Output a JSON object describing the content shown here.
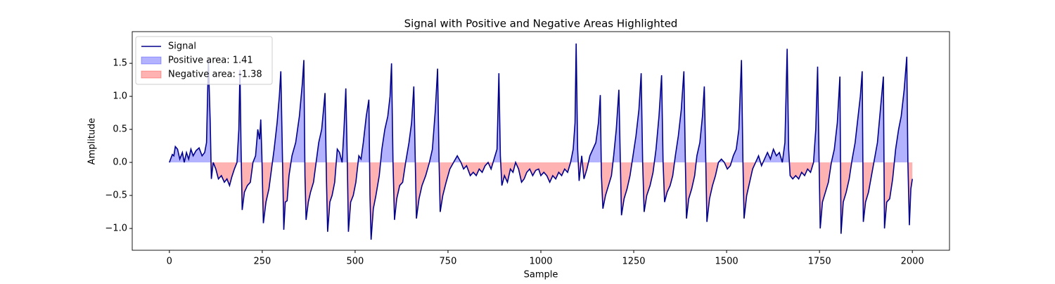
{
  "chart_data": {
    "type": "line",
    "title": "Signal with Positive and Negative Areas Highlighted",
    "xlabel": "Sample",
    "ylabel": "Amplitude",
    "x": [
      0,
      8,
      12,
      16,
      22,
      28,
      35,
      40,
      46,
      52,
      58,
      64,
      72,
      80,
      88,
      95,
      100,
      105,
      110,
      113,
      118,
      125,
      132,
      140,
      148,
      155,
      162,
      168,
      175,
      182,
      187,
      190,
      193,
      196,
      202,
      210,
      218,
      225,
      232,
      238,
      243,
      246,
      249,
      253,
      260,
      268,
      275,
      282,
      290,
      296,
      300,
      304,
      308,
      312,
      317,
      322,
      330,
      340,
      350,
      358,
      362,
      365,
      368,
      374,
      380,
      388,
      395,
      402,
      410,
      415,
      419,
      423,
      426,
      432,
      438,
      445,
      452,
      458,
      465,
      470,
      475,
      479,
      482,
      488,
      495,
      502,
      510,
      516,
      522,
      530,
      537,
      540,
      543,
      549,
      556,
      565,
      572,
      580,
      588,
      594,
      598,
      602,
      606,
      612,
      620,
      628,
      636,
      645,
      652,
      658,
      662,
      665,
      672,
      680,
      690,
      700,
      708,
      716,
      722,
      726,
      729,
      736,
      745,
      755,
      765,
      775,
      785,
      792,
      800,
      810,
      818,
      826,
      834,
      842,
      850,
      858,
      866,
      874,
      882,
      887,
      891,
      895,
      902,
      910,
      918,
      925,
      932,
      940,
      948,
      955,
      962,
      970,
      978,
      986,
      994,
      1000,
      1008,
      1016,
      1024,
      1032,
      1040,
      1048,
      1056,
      1064,
      1072,
      1080,
      1087,
      1092,
      1095,
      1099,
      1103,
      1110,
      1116,
      1124,
      1132,
      1140,
      1148,
      1155,
      1160,
      1163,
      1167,
      1174,
      1182,
      1190,
      1196,
      1203,
      1210,
      1214,
      1217,
      1224,
      1232,
      1240,
      1248,
      1256,
      1264,
      1270,
      1274,
      1278,
      1285,
      1294,
      1302,
      1310,
      1318,
      1325,
      1329,
      1333,
      1340,
      1348,
      1355,
      1362,
      1370,
      1378,
      1385,
      1389,
      1392,
      1398,
      1406,
      1414,
      1420,
      1428,
      1435,
      1440,
      1444,
      1447,
      1454,
      1462,
      1470,
      1478,
      1486,
      1494,
      1502,
      1510,
      1518,
      1526,
      1533,
      1540,
      1544,
      1547,
      1554,
      1562,
      1570,
      1578,
      1586,
      1594,
      1602,
      1610,
      1618,
      1626,
      1634,
      1642,
      1650,
      1657,
      1663,
      1667,
      1671,
      1678,
      1686,
      1694,
      1702,
      1710,
      1718,
      1726,
      1734,
      1740,
      1745,
      1749,
      1752,
      1758,
      1766,
      1774,
      1782,
      1790,
      1798,
      1805,
      1808,
      1814,
      1822,
      1830,
      1838,
      1846,
      1854,
      1860,
      1865,
      1868,
      1874,
      1882,
      1890,
      1898,
      1906,
      1914,
      1922,
      1925,
      1931,
      1939,
      1947,
      1955,
      1963,
      1970,
      1978,
      1985,
      1988,
      1992,
      1996,
      2000
    ],
    "series": [
      {
        "name": "Signal",
        "color": "#00008b",
        "values": [
          0.0,
          0.12,
          0.1,
          0.24,
          0.2,
          0.05,
          0.15,
          0.0,
          0.15,
          0.05,
          0.2,
          0.1,
          0.18,
          0.22,
          0.1,
          0.15,
          0.3,
          1.55,
          0.6,
          -0.25,
          0.0,
          -0.1,
          -0.25,
          -0.2,
          -0.3,
          -0.25,
          -0.35,
          -0.22,
          -0.1,
          0.0,
          0.5,
          1.4,
          0.2,
          -0.72,
          -0.45,
          -0.35,
          -0.3,
          0.0,
          0.1,
          0.5,
          0.35,
          0.65,
          0.1,
          -0.92,
          -0.6,
          -0.4,
          -0.1,
          0.2,
          0.6,
          1.0,
          1.38,
          0.2,
          -1.02,
          -0.6,
          -0.58,
          -0.2,
          0.1,
          0.3,
          0.7,
          1.2,
          1.55,
          -0.2,
          -0.87,
          -0.6,
          -0.45,
          -0.3,
          0.0,
          0.3,
          0.5,
          0.8,
          1.05,
          -0.3,
          -1.05,
          -0.6,
          -0.5,
          -0.3,
          0.2,
          0.15,
          0.0,
          0.5,
          1.12,
          0.0,
          -1.05,
          -0.6,
          -0.5,
          -0.3,
          0.1,
          0.05,
          0.3,
          0.7,
          0.95,
          -0.5,
          -1.17,
          -0.7,
          -0.5,
          -0.2,
          0.2,
          0.5,
          0.7,
          1.0,
          1.5,
          0.0,
          -0.87,
          -0.55,
          -0.35,
          -0.3,
          0.0,
          0.3,
          0.6,
          1.15,
          0.0,
          -0.85,
          -0.55,
          -0.35,
          -0.2,
          0.0,
          0.2,
          0.8,
          1.42,
          0.0,
          -0.75,
          -0.5,
          -0.3,
          -0.1,
          0.0,
          0.1,
          0.0,
          -0.1,
          -0.05,
          -0.2,
          -0.15,
          -0.2,
          -0.1,
          -0.15,
          -0.05,
          0.0,
          -0.1,
          0.05,
          0.2,
          1.35,
          0.1,
          -0.35,
          -0.2,
          -0.3,
          -0.1,
          -0.15,
          0.0,
          -0.1,
          -0.3,
          -0.25,
          -0.15,
          -0.1,
          -0.2,
          -0.12,
          -0.1,
          -0.2,
          -0.15,
          -0.2,
          -0.3,
          -0.2,
          -0.25,
          -0.15,
          -0.2,
          -0.1,
          -0.15,
          0.0,
          0.2,
          0.6,
          1.8,
          0.2,
          -0.28,
          0.1,
          -0.25,
          -0.1,
          0.1,
          0.2,
          0.3,
          0.6,
          1.02,
          -0.2,
          -0.7,
          -0.5,
          -0.35,
          -0.2,
          0.1,
          0.5,
          1.1,
          0.0,
          -0.8,
          -0.55,
          -0.4,
          -0.2,
          0.1,
          0.4,
          0.8,
          1.35,
          0.0,
          -0.75,
          -0.5,
          -0.35,
          -0.15,
          0.2,
          0.7,
          1.32,
          0.0,
          -0.6,
          -0.45,
          -0.35,
          -0.2,
          0.1,
          0.4,
          0.8,
          1.38,
          0.0,
          -0.85,
          -0.55,
          -0.4,
          -0.2,
          0.1,
          0.3,
          0.7,
          1.15,
          0.0,
          -0.9,
          -0.55,
          -0.35,
          -0.2,
          0.0,
          0.05,
          0.0,
          -0.1,
          -0.05,
          0.1,
          0.2,
          0.5,
          1.55,
          0.0,
          -0.85,
          -0.5,
          -0.3,
          -0.1,
          0.0,
          0.1,
          -0.05,
          0.05,
          0.15,
          0.05,
          0.2,
          0.1,
          0.15,
          0.0,
          0.3,
          1.72,
          0.2,
          -0.2,
          -0.25,
          -0.2,
          -0.25,
          -0.15,
          -0.2,
          -0.1,
          -0.15,
          0.0,
          0.5,
          1.45,
          0.0,
          -1.0,
          -0.6,
          -0.45,
          -0.3,
          0.0,
          0.2,
          0.6,
          1.3,
          -1.08,
          -0.6,
          -0.45,
          -0.25,
          0.05,
          0.3,
          0.7,
          1.0,
          1.38,
          -0.9,
          -0.6,
          -0.45,
          -0.2,
          0.05,
          0.3,
          0.8,
          1.3,
          -1.0,
          -0.6,
          -0.55,
          -0.25,
          0.2,
          0.5,
          0.7,
          1.1,
          1.6,
          0.0,
          -0.95,
          -0.4,
          -0.25
        ]
      }
    ],
    "fills": [
      {
        "name": "Positive area: 1.41",
        "color": "#0000ff",
        "alpha": 0.3,
        "where": "above"
      },
      {
        "name": "Negative area: -1.38",
        "color": "#ff0000",
        "alpha": 0.3,
        "where": "below"
      }
    ],
    "xlim": [
      -100,
      2100
    ],
    "ylim": [
      -1.33,
      1.98
    ],
    "xticks": [
      0,
      250,
      500,
      750,
      1000,
      1250,
      1500,
      1750,
      2000
    ],
    "yticks": [
      {
        "value": -1.0,
        "label": "−1.0"
      },
      {
        "value": -0.5,
        "label": "−0.5"
      },
      {
        "value": 0.0,
        "label": "0.0"
      },
      {
        "value": 0.5,
        "label": "0.5"
      },
      {
        "value": 1.0,
        "label": "1.0"
      },
      {
        "value": 1.5,
        "label": "1.5"
      }
    ],
    "legend": "upper left",
    "grid": false
  }
}
